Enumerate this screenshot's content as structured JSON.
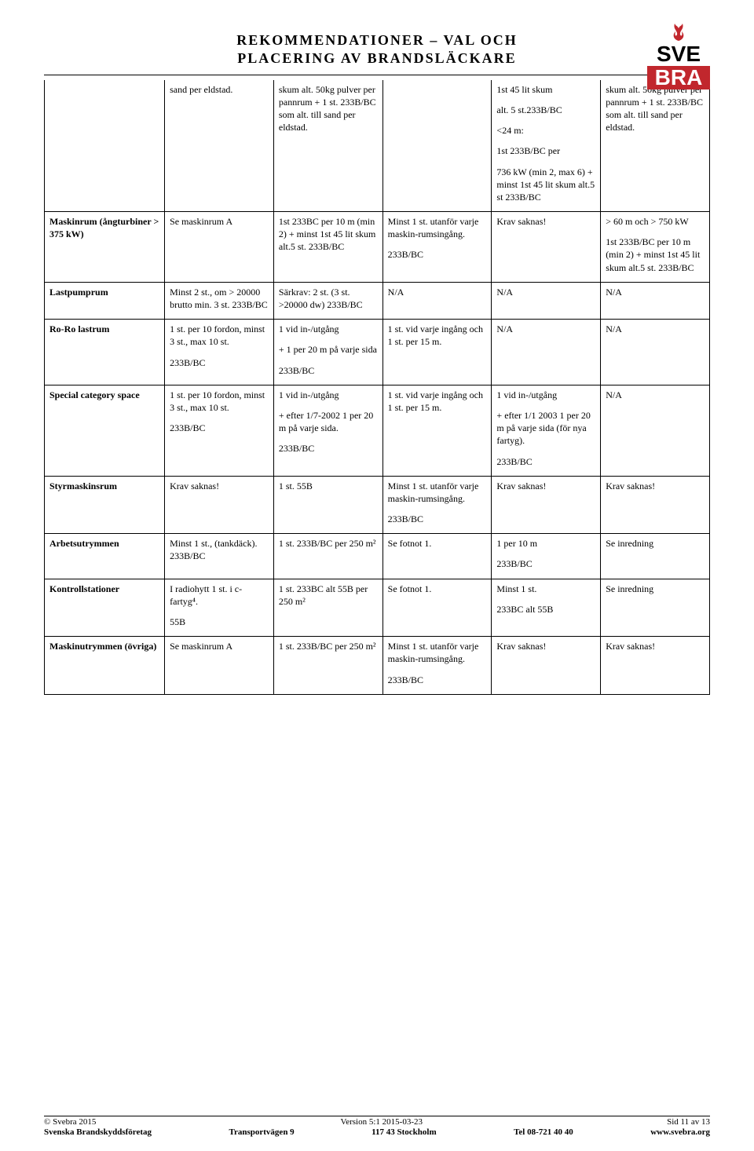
{
  "header": {
    "line1": "REKOMMENDATIONER – VAL OCH",
    "line2": "PLACERING AV BRANDSLÄCKARE"
  },
  "logo": {
    "top_text": "SVE",
    "bottom_text": "BRA",
    "red": "#c1272d",
    "black": "#000000"
  },
  "columns": 6,
  "rows": [
    {
      "label": "",
      "cells": [
        [
          "sand per eldstad."
        ],
        [
          "skum alt. 50kg pulver per pannrum + 1 st. 233B/BC som alt. till sand per eldstad."
        ],
        [],
        [
          "1st 45 lit skum",
          "alt. 5 st.233B/BC",
          "<24 m:",
          "1st 233B/BC per",
          "736 kW (min 2, max 6) + minst 1st 45 lit skum alt.5 st  233B/BC"
        ],
        [
          "skum alt. 50kg pulver per pannrum + 1 st. 233B/BC som alt. till sand per eldstad."
        ]
      ],
      "noLeftBorder": true
    },
    {
      "label": "Maskinrum (ångturbiner > 375 kW)",
      "cells": [
        [
          "Se maskinrum A"
        ],
        [
          "1st 233BC per 10 m (min 2) + minst 1st 45 lit skum alt.5 st. 233B/BC"
        ],
        [
          "Minst 1 st. utanför varje maskin-rumsingång.",
          "233B/BC"
        ],
        [
          "Krav saknas!"
        ],
        [
          "> 60 m och > 750 kW",
          "1st 233B/BC per 10 m (min 2) + minst 1st 45 lit skum alt.5 st. 233B/BC"
        ]
      ]
    },
    {
      "label": "Lastpumprum",
      "cells": [
        [
          "Minst 2 st., om > 20000 brutto min. 3 st. 233B/BC"
        ],
        [
          "Särkrav: 2 st. (3 st. >20000 dw) 233B/BC"
        ],
        [
          "N/A"
        ],
        [
          "N/A"
        ],
        [
          "N/A"
        ]
      ]
    },
    {
      "label": "Ro-Ro lastrum",
      "cells": [
        [
          "1 st. per 10 fordon, minst 3 st., max 10 st.",
          "233B/BC"
        ],
        [
          "1 vid in-/utgång",
          "+ 1 per 20 m på varje sida",
          "233B/BC"
        ],
        [
          "1 st. vid varje ingång och 1 st. per 15 m."
        ],
        [
          "N/A"
        ],
        [
          "N/A"
        ]
      ]
    },
    {
      "label": "Special category space",
      "cells": [
        [
          "1 st. per 10 fordon, minst 3 st., max 10 st.",
          "233B/BC"
        ],
        [
          "1 vid in-/utgång",
          "+ efter 1/7-2002 1 per 20 m på varje sida.",
          "233B/BC"
        ],
        [
          "1 st. vid varje ingång och 1 st. per 15 m."
        ],
        [
          "1 vid in-/utgång",
          "+ efter 1/1 2003 1 per 20 m på varje sida (för nya fartyg).",
          "233B/BC"
        ],
        [
          "N/A"
        ]
      ]
    },
    {
      "label": "Styrmaskinsrum",
      "cells": [
        [
          "Krav saknas!"
        ],
        [
          "1 st. 55B"
        ],
        [
          "Minst 1 st. utanför varje maskin-rumsingång.",
          "233B/BC"
        ],
        [
          "Krav saknas!"
        ],
        [
          "Krav saknas!"
        ]
      ]
    },
    {
      "label": "Arbetsutrymmen",
      "cells": [
        [
          "Minst 1 st., (tankdäck). 233B/BC"
        ],
        [
          "1 st. 233B/BC per 250 m²"
        ],
        [
          "Se fotnot 1."
        ],
        [
          "1 per 10 m",
          "233B/BC"
        ],
        [
          "Se inredning"
        ]
      ]
    },
    {
      "label": "Kontrollstationer",
      "cells": [
        [
          "I radiohytt 1 st. i c-fartyg⁴.",
          "55B"
        ],
        [
          "1 st. 233BC alt 55B per 250 m²"
        ],
        [
          "Se fotnot 1."
        ],
        [
          "Minst 1 st.",
          "233BC alt 55B"
        ],
        [
          "Se inredning"
        ]
      ]
    },
    {
      "label": "Maskinutrymmen (övriga)",
      "cells": [
        [
          "Se maskinrum A"
        ],
        [
          "1 st. 233B/BC per 250 m²"
        ],
        [
          "Minst 1 st. utanför varje maskin-rumsingång.",
          "233B/BC"
        ],
        [
          "Krav saknas!"
        ],
        [
          "Krav saknas!"
        ]
      ]
    }
  ],
  "footer": {
    "line1": {
      "left": "© Svebra 2015",
      "center": "Version 5:1 2015-03-23",
      "right": "Sid 11 av 13"
    },
    "line2": {
      "a": "Svenska Brandskyddsföretag",
      "b": "Transportvägen 9",
      "c": "117 43 Stockholm",
      "d": "Tel 08-721 40 40",
      "e": "www.svebra.org"
    }
  }
}
